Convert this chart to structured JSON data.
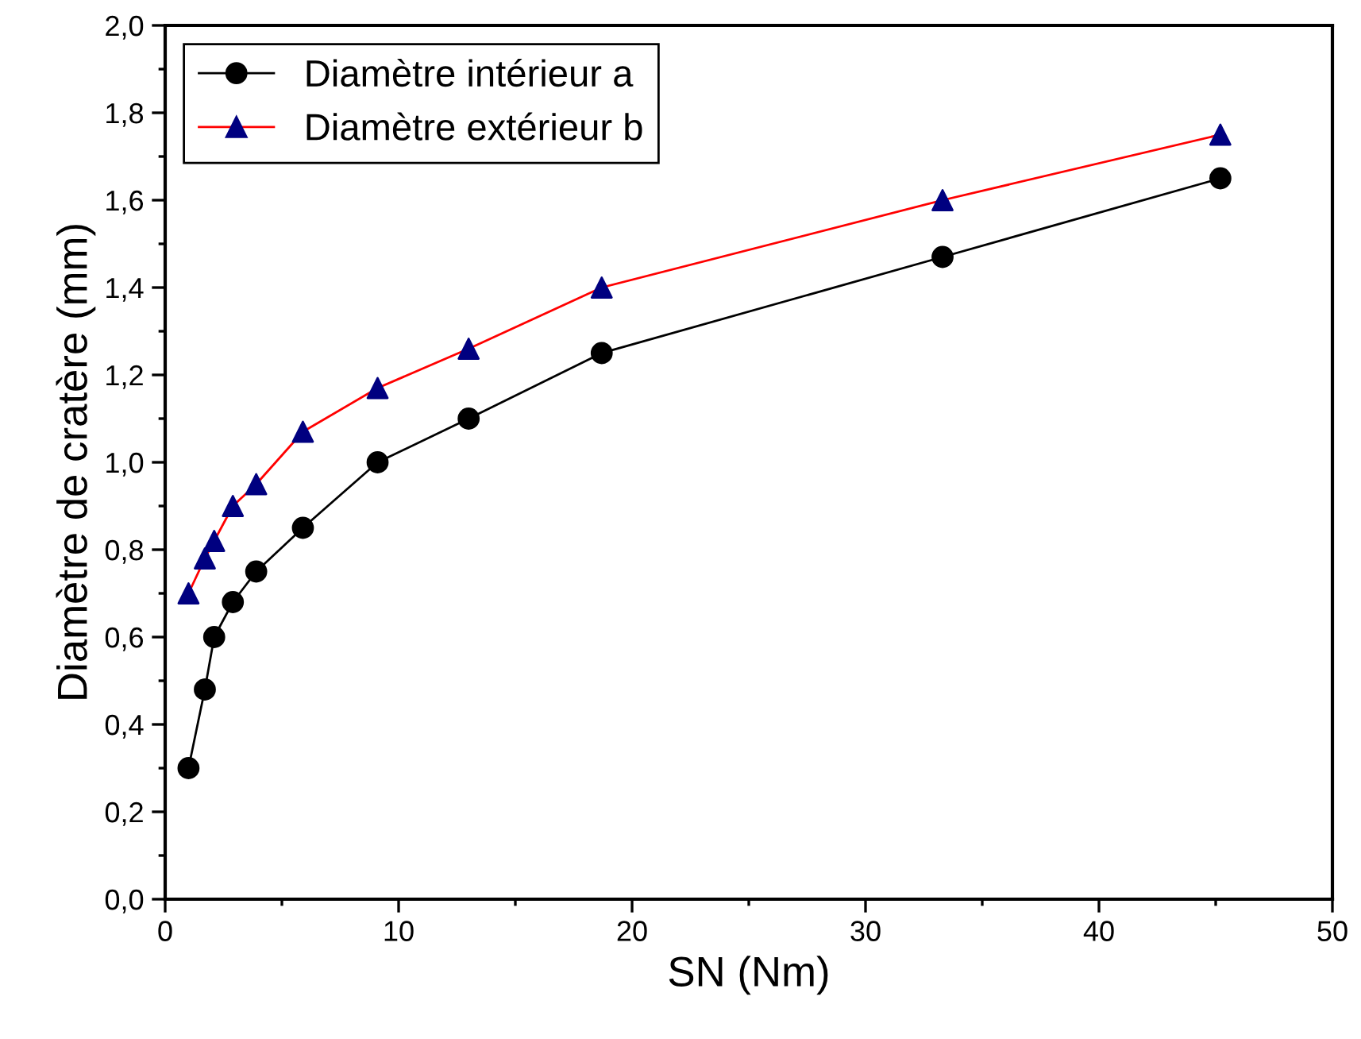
{
  "chart_data": {
    "type": "line",
    "xlabel": "SN (Nm)",
    "ylabel": "Diamètre de cratère (mm)",
    "xlim": [
      0,
      50
    ],
    "xticks": [
      0,
      10,
      20,
      30,
      40,
      50
    ],
    "ylim": [
      0,
      2.0
    ],
    "yticks": [
      {
        "value": 0,
        "label": "0,0"
      },
      {
        "value": 0.2,
        "label": "0,2"
      },
      {
        "value": 0.4,
        "label": "0,4"
      },
      {
        "value": 0.6,
        "label": "0,6"
      },
      {
        "value": 0.8,
        "label": "0,8"
      },
      {
        "value": 1.0,
        "label": "1,0"
      },
      {
        "value": 1.2,
        "label": "1,2"
      },
      {
        "value": 1.4,
        "label": "1,4"
      },
      {
        "value": 1.6,
        "label": "1,6"
      },
      {
        "value": 1.8,
        "label": "1,8"
      },
      {
        "value": 2.0,
        "label": "2,0"
      }
    ],
    "legend": "top left",
    "grid": false,
    "series": [
      {
        "name": "Diamètre intérieur a",
        "color": "#000000",
        "colors": [
          "#000000",
          "#000000",
          "#000000",
          "#000000",
          "#000000",
          "#000000",
          "#000000",
          "#000000",
          "#000000",
          "#000000",
          "#000000"
        ],
        "marker": "circle",
        "x": [
          1,
          1.7,
          2.1,
          2.9,
          3.9,
          5.9,
          9.1,
          13,
          18.7,
          33.3,
          45.2
        ],
        "values": [
          0.3,
          0.48,
          0.6,
          0.68,
          0.75,
          0.85,
          1.0,
          1.1,
          1.25,
          1.47,
          1.65
        ]
      },
      {
        "name": "Diamètre extérieur b",
        "color": "#ff0000",
        "colors": [
          "#000080",
          "#000080",
          "#000080",
          "#000080",
          "#000080",
          "#000080",
          "#000080",
          "#000080",
          "#000080",
          "#000080",
          "#000080"
        ],
        "marker": "triangle",
        "x": [
          1,
          1.7,
          2.1,
          2.9,
          3.9,
          5.9,
          9.1,
          13,
          18.7,
          33.3,
          45.2
        ],
        "values": [
          0.7,
          0.78,
          0.82,
          0.9,
          0.95,
          1.07,
          1.17,
          1.26,
          1.4,
          1.6,
          1.75
        ]
      }
    ]
  }
}
